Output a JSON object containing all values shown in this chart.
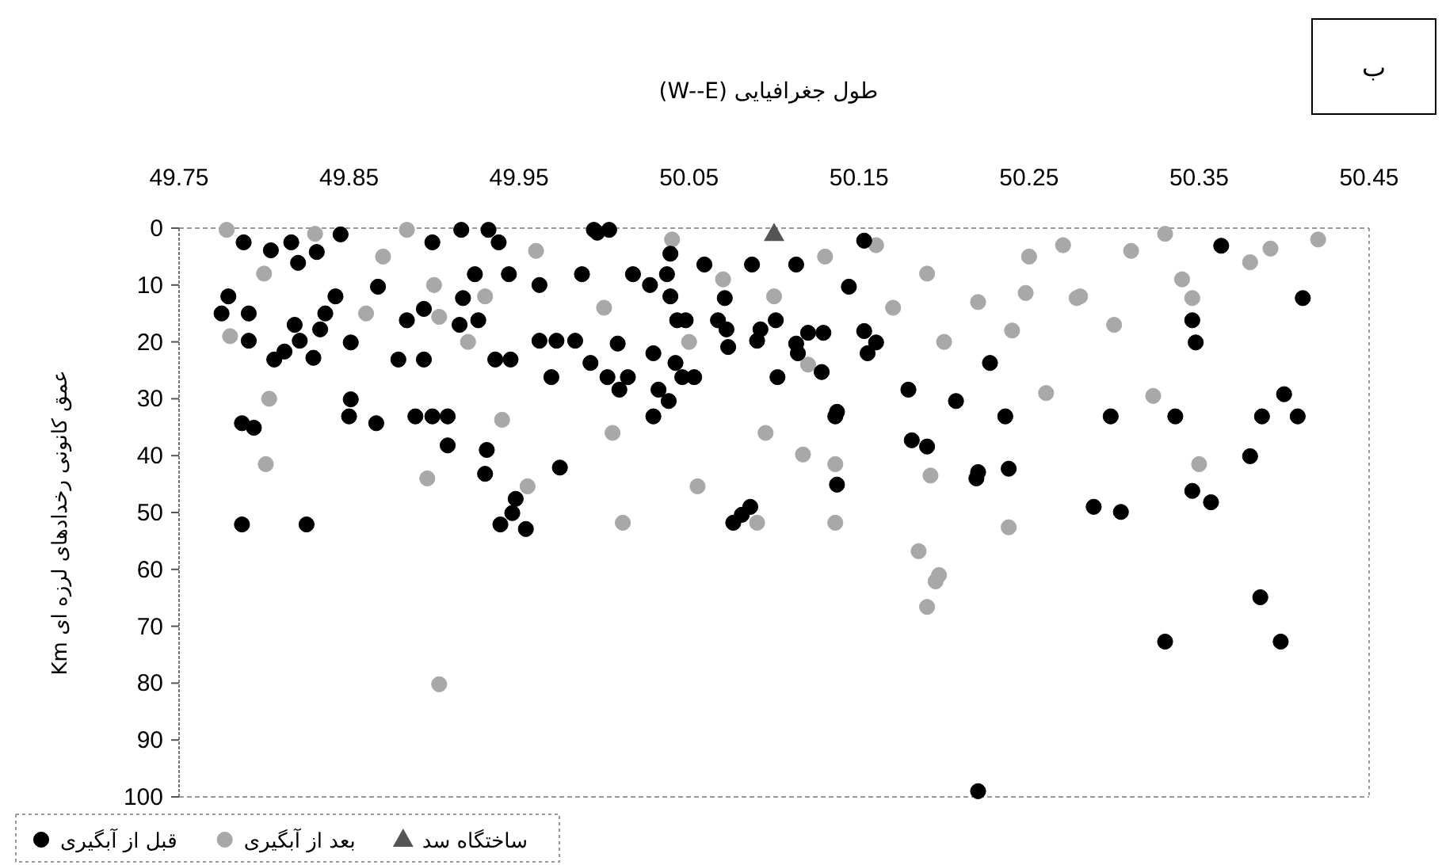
{
  "chart_data": {
    "type": "scatter",
    "xlabel": "طول جغرافیایی (W--E)",
    "ylabel": "عمق کانونی رخدادهای لرزه ای Km",
    "annotations": [
      "ب"
    ],
    "xlim": [
      49.75,
      50.45
    ],
    "xticks": [
      49.75,
      49.85,
      49.95,
      50.05,
      50.15,
      50.25,
      50.35,
      50.45
    ],
    "ylim": [
      100,
      0
    ],
    "yticks": [
      0,
      10,
      20,
      30,
      40,
      50,
      60,
      70,
      80,
      90,
      100
    ],
    "legend": "bottom",
    "series": [
      {
        "name": "قبل از آبگیری",
        "color": "#000000",
        "marker": "circle",
        "x": [
          49.788,
          49.804,
          49.816,
          49.82,
          49.831,
          49.867,
          49.842,
          49.779,
          49.775,
          49.791,
          49.836,
          49.818,
          49.833,
          49.791,
          49.821,
          49.851,
          49.806,
          49.812,
          49.829,
          49.879,
          49.894,
          49.884,
          49.894,
          49.916,
          49.932,
          49.938,
          49.924,
          49.944,
          49.899,
          49.917,
          49.915,
          49.926,
          49.936,
          49.945,
          49.962,
          49.972,
          49.983,
          49.969,
          49.992,
          49.987,
          49.962,
          49.996,
          49.787,
          49.794,
          49.851,
          49.85,
          49.866,
          49.889,
          49.899,
          49.908,
          49.908,
          49.931,
          49.93,
          49.974,
          49.787,
          49.825,
          49.948,
          49.946,
          49.939,
          49.954,
          49.845,
          49.994,
          50.003,
          50.153,
          50.039,
          50.059,
          50.087,
          50.113,
          50.017,
          50.037,
          50.027,
          50.039,
          50.071,
          50.144,
          50.048,
          50.043,
          50.067,
          50.072,
          50.092,
          50.101,
          50.12,
          50.129,
          50.008,
          50.113,
          50.09,
          50.073,
          50.114,
          50.029,
          50.153,
          50.16,
          50.155,
          50.002,
          50.014,
          50.042,
          50.046,
          50.053,
          50.009,
          50.032,
          50.038,
          50.029,
          50.102,
          50.128,
          50.137,
          50.136,
          50.179,
          50.207,
          50.227,
          50.181,
          50.19,
          50.219,
          50.22,
          50.137,
          50.086,
          50.081,
          50.076,
          50.363,
          50.411,
          50.346,
          50.348,
          50.236,
          50.298,
          50.336,
          50.387,
          50.408,
          50.4,
          50.38,
          50.238,
          50.346,
          50.357,
          50.288,
          50.304,
          50.386,
          50.33,
          50.398,
          50.22
        ],
        "values": [
          2.5,
          3.9,
          2.5,
          6.1,
          4.2,
          10.3,
          12.0,
          12.0,
          15.0,
          15.0,
          15.0,
          17.0,
          17.8,
          19.8,
          19.8,
          20.1,
          23.1,
          21.7,
          22.8,
          23.1,
          23.1,
          16.2,
          14.2,
          0.3,
          0.3,
          2.5,
          8.1,
          8.1,
          2.5,
          12.3,
          17.0,
          16.2,
          23.1,
          23.1,
          19.8,
          19.8,
          19.8,
          26.2,
          23.7,
          8.1,
          10.0,
          0.8,
          34.3,
          35.1,
          30.1,
          33.1,
          34.3,
          33.1,
          33.1,
          33.1,
          38.2,
          39.0,
          43.2,
          42.1,
          52.1,
          52.1,
          47.6,
          50.1,
          52.1,
          52.9,
          1.1,
          0.3,
          0.3,
          2.2,
          4.5,
          6.4,
          6.4,
          6.4,
          8.1,
          8.1,
          10.0,
          12.0,
          12.3,
          10.3,
          16.2,
          16.2,
          16.2,
          17.8,
          17.8,
          16.2,
          18.4,
          18.4,
          20.3,
          20.3,
          19.8,
          20.9,
          22.0,
          22.0,
          18.1,
          20.1,
          22.0,
          26.2,
          26.2,
          23.7,
          26.2,
          26.2,
          28.4,
          28.4,
          30.4,
          33.1,
          26.2,
          25.3,
          32.3,
          33.1,
          28.4,
          30.4,
          23.7,
          37.3,
          38.4,
          44.0,
          42.9,
          45.1,
          49.0,
          50.4,
          51.8,
          3.1,
          12.3,
          16.2,
          20.1,
          33.1,
          33.1,
          33.1,
          33.1,
          33.1,
          29.2,
          40.1,
          42.3,
          46.2,
          48.2,
          49.0,
          49.9,
          64.9,
          72.7,
          72.7,
          99
        ]
      },
      {
        "name": "بعد از آبگیری",
        "color": "#a8a8a8",
        "marker": "circle",
        "x": [
          49.801,
          49.803,
          49.94,
          49.778,
          49.884,
          49.903,
          49.903,
          49.896,
          49.955,
          50.005,
          50.195,
          50.19,
          50.185,
          50.136,
          50.136,
          50.09,
          50.095,
          50.055,
          50.011,
          50.192,
          50.117,
          50.197,
          50.238,
          50.26,
          50.323,
          50.35,
          49.8,
          49.83,
          49.87,
          49.9,
          49.93,
          49.96,
          50.0,
          50.04,
          50.07,
          50.1,
          50.13,
          50.16,
          50.19,
          50.22,
          50.25,
          50.28,
          50.31,
          50.34,
          50.38,
          50.42,
          50.24,
          50.3,
          50.2,
          50.05,
          49.92,
          49.86,
          49.78,
          50.27,
          50.33,
          50.17,
          50.12,
          50.278,
          50.346,
          50.392,
          50.248
        ],
        "values": [
          41.5,
          30.0,
          33.7,
          0.3,
          0.3,
          15.6,
          80.2,
          44.0,
          45.4,
          36.0,
          62.1,
          66.6,
          56.8,
          51.8,
          41.5,
          51.8,
          36.0,
          45.4,
          51.8,
          43.5,
          39.8,
          61.0,
          52.6,
          29.0,
          29.5,
          41.5,
          8,
          1,
          5,
          10,
          12,
          4,
          14,
          2,
          9,
          12,
          5,
          3,
          8,
          13,
          5,
          12,
          4,
          9,
          6,
          2,
          18,
          17,
          20,
          20,
          20,
          15,
          19,
          3,
          1,
          14,
          24,
          12.3,
          12.3,
          3.6,
          11.4
        ]
      },
      {
        "name": "ساختگاه سد",
        "color": "#555555",
        "marker": "triangle",
        "x": [
          50.1
        ],
        "values": [
          1
        ]
      }
    ]
  }
}
